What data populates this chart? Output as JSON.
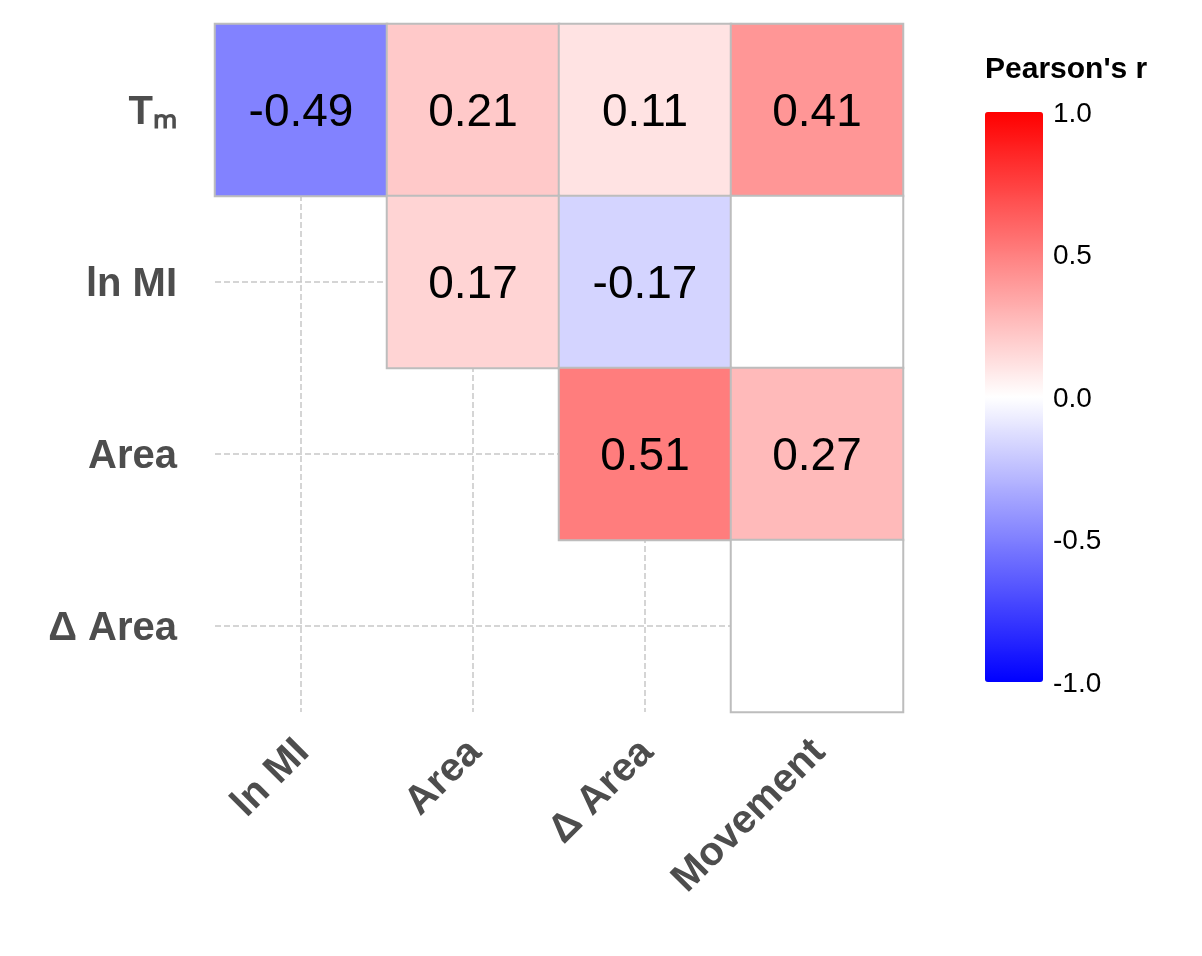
{
  "chart_data": {
    "type": "heatmap",
    "categories": [
      "ln MI",
      "Area",
      "Δ Area",
      "Movement"
    ],
    "y_categories": [
      "Tₘ",
      "ln MI",
      "Area",
      "Δ Area"
    ],
    "cells": [
      [
        -0.49,
        0.21,
        0.11,
        0.41
      ],
      [
        null,
        0.17,
        -0.17,
        0
      ],
      [
        null,
        null,
        0.51,
        0.27
      ],
      [
        null,
        null,
        null,
        0
      ]
    ],
    "cell_labels": [
      [
        "-0.49",
        "0.21",
        "0.11",
        "0.41"
      ],
      [
        null,
        "0.17",
        "-0.17",
        null
      ],
      [
        null,
        null,
        "0.51",
        "0.27"
      ],
      [
        null,
        null,
        null,
        null
      ]
    ],
    "clabel": "Pearson's r",
    "clim": [
      -1,
      1
    ],
    "cticks": [
      {
        "value": 1,
        "label": "1.0"
      },
      {
        "value": 0.5,
        "label": "0.5"
      },
      {
        "value": 0,
        "label": "0.0"
      },
      {
        "value": -0.5,
        "label": "-0.5"
      },
      {
        "value": -1,
        "label": "-1.0"
      }
    ],
    "grid": true
  }
}
